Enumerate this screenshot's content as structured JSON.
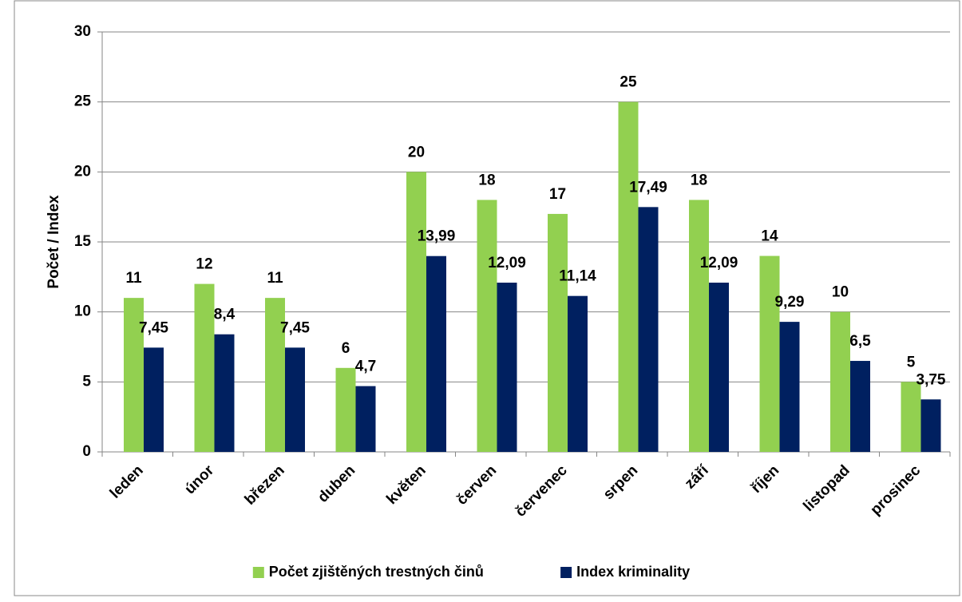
{
  "chart_data": {
    "type": "bar",
    "y_label": "Počet / Index",
    "categories": [
      "leden",
      "únor",
      "březen",
      "duben",
      "květen",
      "červen",
      "červenec",
      "srpen",
      "září",
      "říjen",
      "listopad",
      "prosinec"
    ],
    "series": [
      {
        "name": "Počet zjištěných trestných činů",
        "color": "#92d050",
        "values": [
          11,
          12,
          11,
          6,
          20,
          18,
          17,
          25,
          18,
          14,
          10,
          5
        ]
      },
      {
        "name": "Index kriminality",
        "color": "#002060",
        "values": [
          7.45,
          8.4,
          7.45,
          4.7,
          13.99,
          12.09,
          11.14,
          17.49,
          12.09,
          9.29,
          6.5,
          3.75
        ],
        "value_labels": [
          "7,45",
          "8,4",
          "7,45",
          "4,7",
          "13,99",
          "12,09",
          "11,14",
          "17,49",
          "12,09",
          "9,29",
          "6,5",
          "3,75"
        ]
      }
    ],
    "ylim": [
      0,
      30
    ],
    "yticks": [
      0,
      5,
      10,
      15,
      20,
      25,
      30
    ],
    "grid": true,
    "legend": "bottom"
  }
}
